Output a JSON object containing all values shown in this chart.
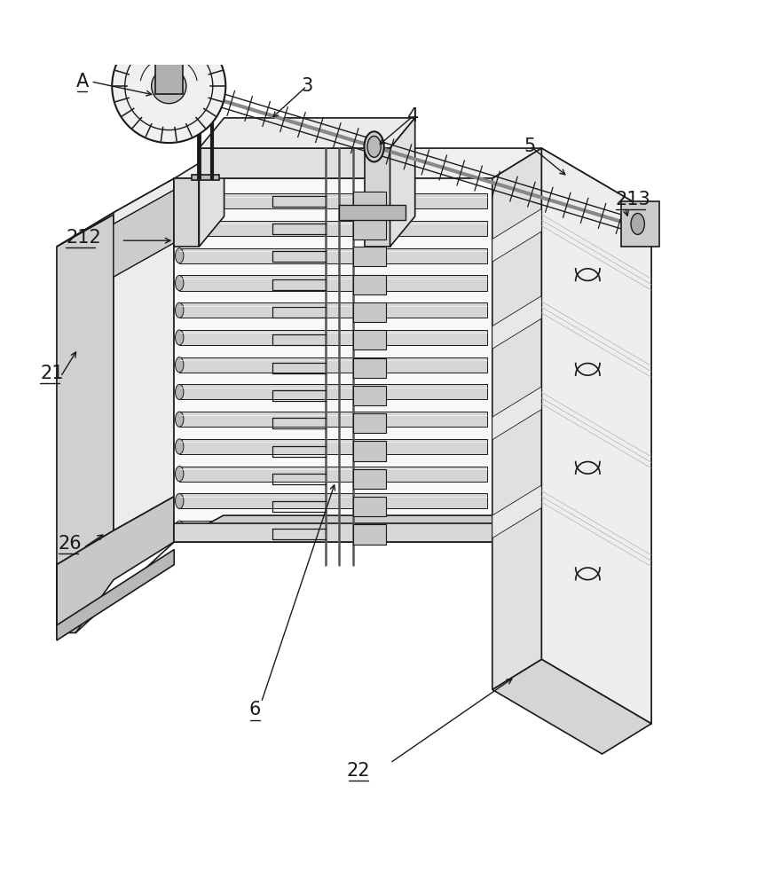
{
  "bg_color": "#ffffff",
  "line_color": "#1a1a1a",
  "line_width": 1.2,
  "fig_width": 8.62,
  "fig_height": 10.0,
  "label_fontsize": 15
}
